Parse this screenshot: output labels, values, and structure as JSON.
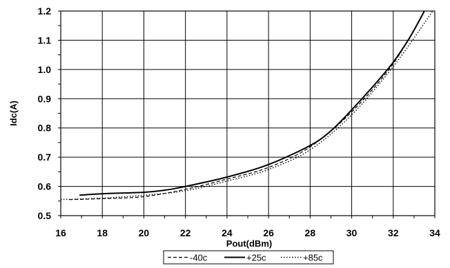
{
  "chart_data": {
    "type": "line",
    "xlabel": "Pout(dBm)",
    "ylabel": "Idc(A)",
    "xlim": [
      16,
      34
    ],
    "ylim": [
      0.5,
      1.2
    ],
    "xticks": [
      16,
      18,
      20,
      22,
      24,
      26,
      28,
      30,
      32,
      34
    ],
    "yticks": [
      0.5,
      0.6,
      0.7,
      0.8,
      0.9,
      1.0,
      1.1,
      1.2
    ],
    "ytick_labels": [
      "0.5",
      "0.6",
      "0.7",
      "0.8",
      "0.9",
      "1.0",
      "1.1",
      "1.2"
    ],
    "grid": true,
    "legend_position": "bottom",
    "series": [
      {
        "name": "-40c",
        "style": "dashed",
        "points": [
          [
            16.4,
            0.555
          ],
          [
            18,
            0.558
          ],
          [
            20,
            0.565
          ],
          [
            22,
            0.59
          ],
          [
            24,
            0.625
          ],
          [
            26,
            0.665
          ],
          [
            28,
            0.735
          ],
          [
            30,
            0.855
          ],
          [
            32,
            1.02
          ],
          [
            33.5,
            1.2
          ]
        ]
      },
      {
        "name": "+25c",
        "style": "solid",
        "points": [
          [
            16.9,
            0.57
          ],
          [
            18,
            0.575
          ],
          [
            20,
            0.58
          ],
          [
            21,
            0.587
          ],
          [
            22,
            0.6
          ],
          [
            24,
            0.632
          ],
          [
            26,
            0.675
          ],
          [
            28,
            0.74
          ],
          [
            29,
            0.79
          ],
          [
            30,
            0.862
          ],
          [
            31,
            0.94
          ],
          [
            32,
            1.025
          ],
          [
            32.8,
            1.11
          ],
          [
            33.5,
            1.2
          ]
        ]
      },
      {
        "name": "+85c",
        "style": "dotted",
        "points": [
          [
            16,
            0.555
          ],
          [
            18,
            0.56
          ],
          [
            20,
            0.57
          ],
          [
            22,
            0.585
          ],
          [
            24,
            0.618
          ],
          [
            26,
            0.658
          ],
          [
            28,
            0.725
          ],
          [
            30,
            0.845
          ],
          [
            32,
            1.01
          ],
          [
            33.9,
            1.2
          ]
        ]
      }
    ]
  }
}
